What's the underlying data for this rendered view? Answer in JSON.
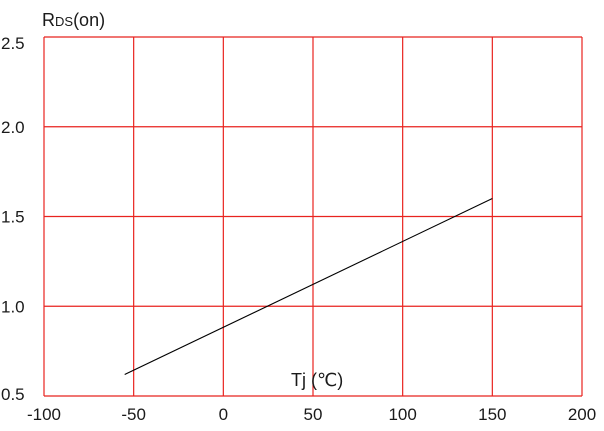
{
  "chart_data": {
    "type": "line",
    "title": "",
    "ylabel": "RDS(on)",
    "ylabel_main": "R",
    "ylabel_sub": "DS",
    "ylabel_suffix": "(on)",
    "xlabel": "Tj (℃)",
    "xlim": [
      -100,
      200
    ],
    "ylim": [
      0.5,
      2.5
    ],
    "x_ticks": [
      -100,
      -50,
      0,
      50,
      100,
      150,
      200
    ],
    "y_ticks": [
      0.5,
      1.0,
      1.5,
      2.0,
      2.5
    ],
    "x_tick_labels": [
      "-100",
      "-50",
      "0",
      "50",
      "100",
      "150",
      "200"
    ],
    "y_tick_labels": [
      "0.5",
      "1.0",
      "1.5",
      "2.0",
      "2.5"
    ],
    "grid": true,
    "grid_color": "#e8231f",
    "line_color": "#000000",
    "series": [
      {
        "x": [
          -55,
          150
        ],
        "y": [
          0.62,
          1.6
        ]
      }
    ]
  }
}
